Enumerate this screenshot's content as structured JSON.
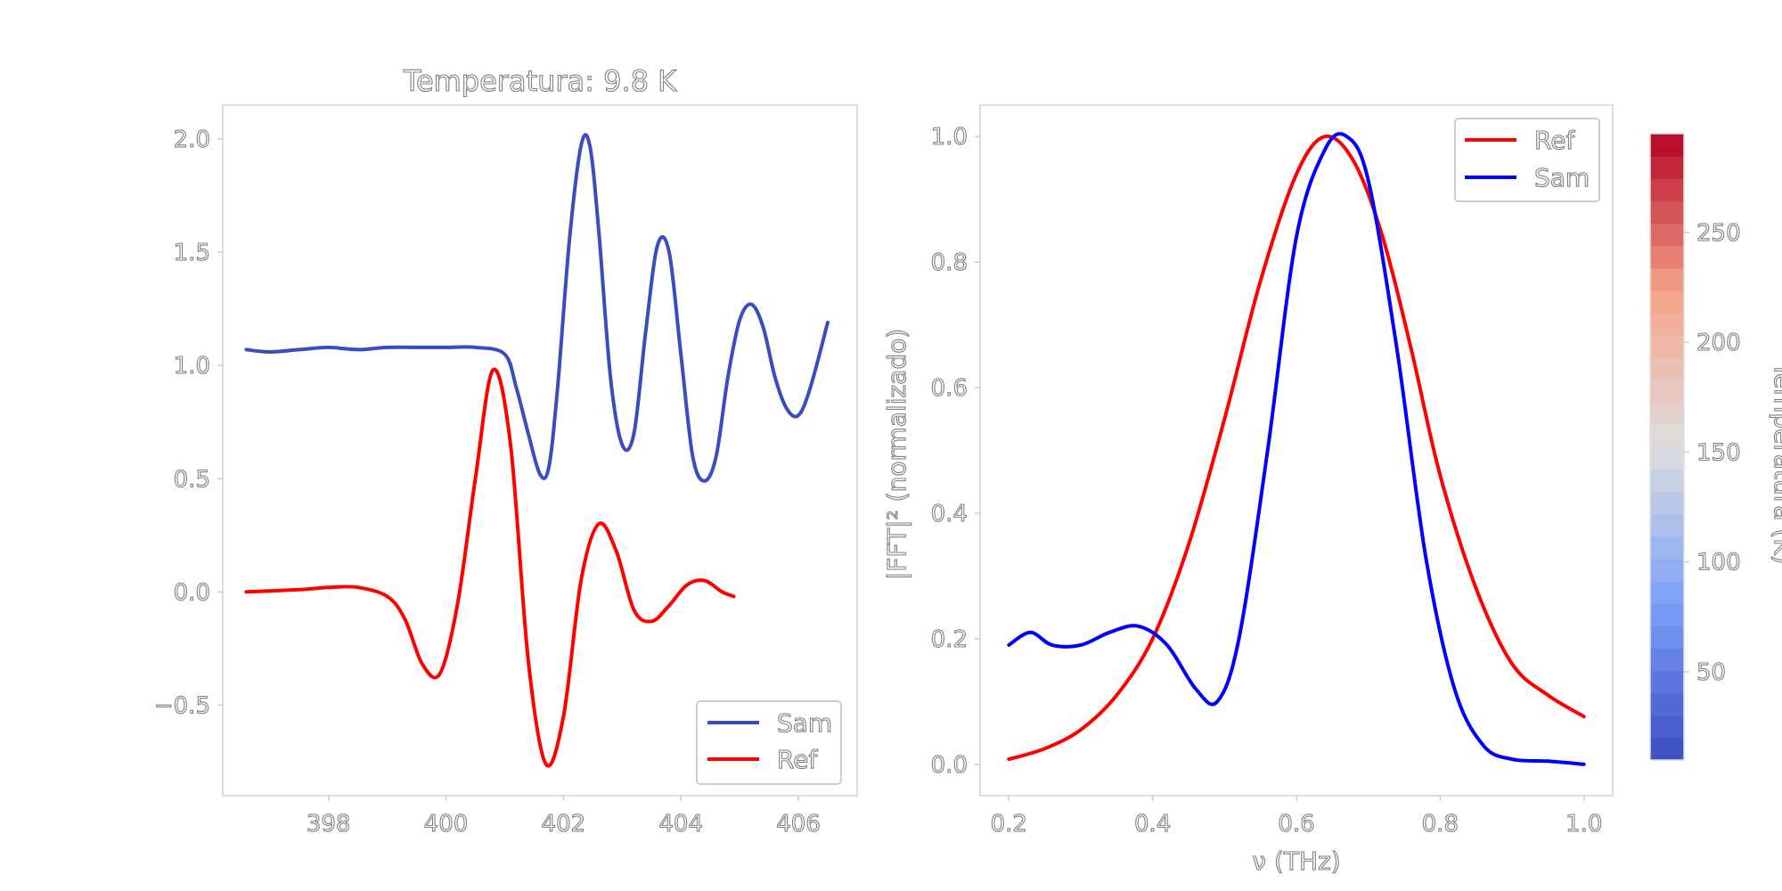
{
  "chart_data": [
    {
      "type": "line",
      "title": "Temperatura: 9.8 K",
      "xlabel": "",
      "ylabel": "",
      "xlim": [
        396.2,
        407.0
      ],
      "ylim": [
        -0.9,
        2.15
      ],
      "xticks": [
        "398",
        "400",
        "402",
        "404",
        "406"
      ],
      "xtick_values": [
        398,
        400,
        402,
        404,
        406
      ],
      "yticks": [
        "−0.5",
        "0.0",
        "0.5",
        "1.0",
        "1.5",
        "2.0"
      ],
      "ytick_values": [
        -0.5,
        0.0,
        0.5,
        1.0,
        1.5,
        2.0
      ],
      "legend": {
        "placement": "lower-right",
        "entries": [
          "Sam",
          "Ref"
        ]
      },
      "series": [
        {
          "name": "Sam",
          "color": "#3b4cc0",
          "x": [
            396.6,
            397.0,
            397.5,
            398.0,
            398.5,
            399.0,
            399.5,
            400.0,
            400.5,
            401.0,
            401.2,
            401.4,
            401.6,
            401.75,
            401.9,
            402.1,
            402.3,
            402.45,
            402.6,
            402.8,
            403.0,
            403.2,
            403.4,
            403.6,
            403.8,
            404.0,
            404.2,
            404.4,
            404.6,
            404.8,
            405.0,
            405.2,
            405.4,
            405.6,
            405.8,
            406.0,
            406.2,
            406.5
          ],
          "y": [
            1.07,
            1.06,
            1.07,
            1.08,
            1.07,
            1.08,
            1.08,
            1.08,
            1.08,
            1.05,
            0.9,
            0.7,
            0.52,
            0.55,
            0.9,
            1.55,
            1.97,
            1.97,
            1.6,
            0.95,
            0.65,
            0.7,
            1.15,
            1.53,
            1.5,
            1.05,
            0.6,
            0.49,
            0.6,
            0.95,
            1.2,
            1.27,
            1.17,
            0.95,
            0.81,
            0.78,
            0.9,
            1.19
          ]
        },
        {
          "name": "Ref",
          "color": "#ff0000",
          "x": [
            396.6,
            397.5,
            398.0,
            398.5,
            399.0,
            399.3,
            399.6,
            399.9,
            400.2,
            400.5,
            400.8,
            401.1,
            401.4,
            401.7,
            402.0,
            402.3,
            402.6,
            402.9,
            403.2,
            403.5,
            403.8,
            404.1,
            404.4,
            404.7,
            404.9
          ],
          "y": [
            0.0,
            0.01,
            0.02,
            0.02,
            -0.02,
            -0.12,
            -0.32,
            -0.36,
            -0.05,
            0.5,
            0.98,
            0.65,
            -0.3,
            -0.76,
            -0.55,
            0.05,
            0.3,
            0.18,
            -0.08,
            -0.13,
            -0.06,
            0.03,
            0.05,
            0.0,
            -0.02
          ]
        }
      ]
    },
    {
      "type": "line",
      "title": "",
      "xlabel": "ν (THz)",
      "ylabel": "|FFT|² (normalizado)",
      "xlim": [
        0.16,
        1.04
      ],
      "ylim": [
        -0.05,
        1.05
      ],
      "xticks": [
        "0.2",
        "0.4",
        "0.6",
        "0.8",
        "1.0"
      ],
      "xtick_values": [
        0.2,
        0.4,
        0.6,
        0.8,
        1.0
      ],
      "yticks": [
        "0.0",
        "0.2",
        "0.4",
        "0.6",
        "0.8",
        "1.0"
      ],
      "ytick_values": [
        0.0,
        0.2,
        0.4,
        0.6,
        0.8,
        1.0
      ],
      "legend": {
        "placement": "top-right",
        "entries": [
          "Ref",
          "Sam"
        ]
      },
      "series": [
        {
          "name": "Ref",
          "color": "#ff0000",
          "x": [
            0.2,
            0.25,
            0.3,
            0.35,
            0.4,
            0.45,
            0.5,
            0.55,
            0.6,
            0.64,
            0.68,
            0.72,
            0.76,
            0.8,
            0.85,
            0.9,
            0.95,
            1.0
          ],
          "y": [
            0.008,
            0.025,
            0.055,
            0.11,
            0.2,
            0.35,
            0.55,
            0.77,
            0.94,
            1.0,
            0.96,
            0.84,
            0.66,
            0.46,
            0.28,
            0.16,
            0.11,
            0.076
          ]
        },
        {
          "name": "Sam",
          "color": "#0000ff",
          "x": [
            0.2,
            0.23,
            0.26,
            0.3,
            0.34,
            0.38,
            0.42,
            0.46,
            0.49,
            0.52,
            0.56,
            0.6,
            0.64,
            0.67,
            0.7,
            0.74,
            0.78,
            0.82,
            0.86,
            0.9,
            0.95,
            1.0
          ],
          "y": [
            0.19,
            0.21,
            0.19,
            0.19,
            0.21,
            0.22,
            0.19,
            0.12,
            0.1,
            0.2,
            0.5,
            0.84,
            0.98,
            1.0,
            0.93,
            0.66,
            0.33,
            0.12,
            0.03,
            0.008,
            0.005,
            0.0
          ]
        }
      ]
    }
  ],
  "colorbar": {
    "label": "Temperatura (K)",
    "ticks": [
      "50",
      "100",
      "150",
      "200",
      "250"
    ],
    "tick_values": [
      50,
      100,
      150,
      200,
      250
    ],
    "range": [
      9.8,
      295
    ],
    "colormap": "coolwarm"
  }
}
